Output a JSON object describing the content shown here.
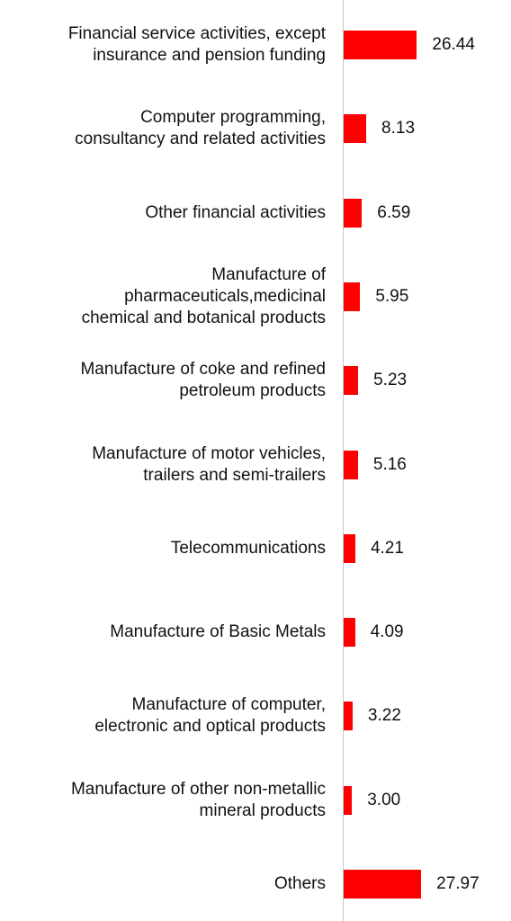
{
  "chart_data": {
    "type": "barh",
    "categories": [
      "Financial service activities, except\ninsurance and pension funding",
      "Computer programming,\nconsultancy and related activities",
      "Other financial activities",
      "Manufacture of\npharmaceuticals,medicinal\nchemical and botanical products",
      "Manufacture of coke and refined\npetroleum products",
      "Manufacture of motor vehicles,\ntrailers and semi-trailers",
      "Telecommunications",
      "Manufacture of Basic Metals",
      "Manufacture of computer,\nelectronic and optical products",
      "Manufacture of other non-metallic\nmineral products",
      "Others"
    ],
    "values": [
      26.44,
      8.13,
      6.59,
      5.95,
      5.23,
      5.16,
      4.21,
      4.09,
      3.22,
      3.0,
      27.97
    ],
    "value_labels": [
      "26.44",
      "8.13",
      "6.59",
      "5.95",
      "5.23",
      "5.16",
      "4.21",
      "4.09",
      "3.22",
      "3.00",
      "27.97"
    ],
    "color": "#ff0000"
  }
}
